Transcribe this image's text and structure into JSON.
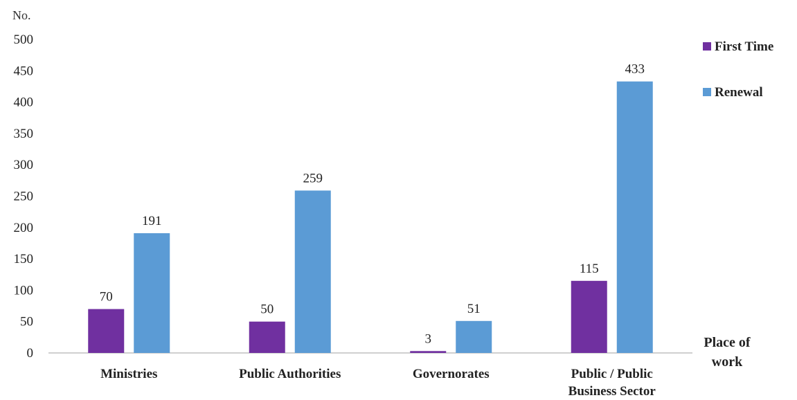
{
  "chart_data": {
    "type": "bar",
    "ylabel": "No.",
    "xlabel": "Place of work",
    "xlabel_lines": [
      "Place of",
      "work"
    ],
    "categories": [
      "Ministries",
      "Public Authorities",
      "Governorates",
      "Public / Public Business Sector"
    ],
    "category_lines": [
      [
        "Ministries"
      ],
      [
        "Public Authorities"
      ],
      [
        "Governorates"
      ],
      [
        "Public / Public",
        "Business Sector"
      ]
    ],
    "series": [
      {
        "name": "First Time",
        "color": "#7030A0",
        "values": [
          70,
          50,
          3,
          115
        ]
      },
      {
        "name": "Renewal",
        "color": "#5B9BD5",
        "values": [
          191,
          259,
          51,
          433
        ]
      }
    ],
    "ylim": [
      0,
      500
    ],
    "yticks": [
      0,
      50,
      100,
      150,
      200,
      250,
      300,
      350,
      400,
      450,
      500
    ],
    "grid": false,
    "legend_position": "right"
  }
}
